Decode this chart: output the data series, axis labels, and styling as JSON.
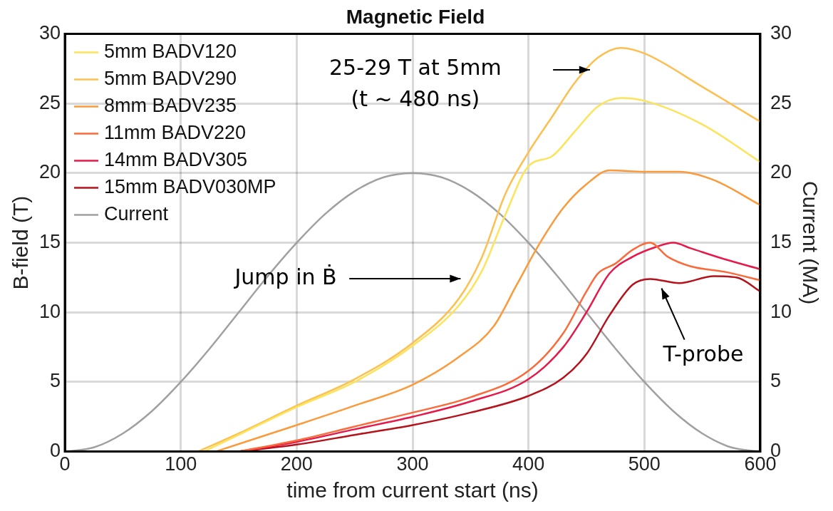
{
  "chart_data": {
    "type": "line",
    "title": "Magnetic Field",
    "xlabel": "time from current start (ns)",
    "ylabel": "B-field (T)",
    "y2label": "Current (MA)",
    "xlim": [
      0,
      600
    ],
    "xticks": [
      0,
      100,
      200,
      300,
      400,
      500,
      600
    ],
    "ylim": [
      0,
      30
    ],
    "yticks": [
      0,
      5,
      10,
      15,
      20,
      25,
      30
    ],
    "y2lim": [
      0,
      30
    ],
    "y2ticks": [
      0,
      5,
      10,
      15,
      20,
      25,
      30
    ],
    "grid": true,
    "legend": "top left",
    "marker": "none",
    "annotations": [
      "25-29 T at 5mm\n(t ~ 480 ns)",
      "Jump in Ḃ",
      "T-probe"
    ],
    "series": [
      {
        "name": "5mm BADV120",
        "color": "#fde35a",
        "x": [
          120,
          150,
          200,
          250,
          300,
          340,
          360,
          380,
          400,
          420,
          440,
          460,
          480,
          500,
          550,
          600
        ],
        "values": [
          0,
          1.2,
          3.2,
          5,
          7.6,
          10.5,
          13,
          17,
          20.5,
          21.2,
          23,
          24.8,
          25.4,
          25.2,
          23.5,
          20.8
        ]
      },
      {
        "name": "5mm BADV290",
        "color": "#fdbf4f",
        "x": [
          115,
          150,
          200,
          250,
          300,
          340,
          360,
          380,
          400,
          420,
          440,
          460,
          480,
          500,
          550,
          600
        ],
        "values": [
          0,
          1.3,
          3.3,
          5.2,
          7.8,
          11,
          14,
          18.5,
          21.5,
          24,
          26.5,
          28.3,
          29,
          28.6,
          26.2,
          23.7
        ]
      },
      {
        "name": "8mm BADV235",
        "color": "#fb9a3a",
        "x": [
          130,
          200,
          250,
          300,
          340,
          370,
          390,
          410,
          430,
          450,
          470,
          500,
          530,
          560,
          600
        ],
        "values": [
          0,
          1.9,
          3.3,
          4.8,
          6.8,
          9,
          12,
          15,
          17.5,
          19.2,
          20.2,
          20.1,
          20.1,
          19.5,
          17.7
        ]
      },
      {
        "name": "11mm BADV220",
        "color": "#fa6a3a",
        "x": [
          150,
          200,
          250,
          300,
          350,
          400,
          430,
          450,
          460,
          475,
          490,
          505,
          520,
          540,
          570,
          600
        ],
        "values": [
          0,
          0.8,
          1.8,
          2.8,
          3.9,
          5.8,
          8.5,
          11.5,
          12.8,
          13.5,
          14.5,
          15,
          14,
          13.3,
          12.9,
          12.3
        ]
      },
      {
        "name": "14mm BADV305",
        "color": "#e5194a",
        "x": [
          150,
          200,
          250,
          300,
          350,
          400,
          430,
          450,
          470,
          490,
          510,
          525,
          540,
          570,
          600
        ],
        "values": [
          0,
          0.7,
          1.6,
          2.5,
          3.6,
          5.2,
          7.5,
          10,
          12.8,
          14,
          14.7,
          15,
          14.6,
          13.8,
          13.1
        ]
      },
      {
        "name": "15mm BADV030MP",
        "color": "#b5121b",
        "x": [
          150,
          200,
          250,
          300,
          350,
          400,
          430,
          450,
          470,
          490,
          505,
          530,
          560,
          580,
          600
        ],
        "values": [
          0,
          0.5,
          1.2,
          1.9,
          2.8,
          4,
          5.3,
          7,
          9.8,
          12,
          12.4,
          12.1,
          12.6,
          12.5,
          11.5
        ]
      },
      {
        "name": "Current",
        "color": "#a0a0a0",
        "x": [
          0,
          25,
          50,
          75,
          100,
          125,
          150,
          175,
          200,
          225,
          250,
          275,
          300,
          325,
          350,
          375,
          400,
          425,
          450,
          475,
          500,
          525,
          550,
          575,
          600
        ],
        "values": [
          0,
          0.3,
          1.3,
          2.9,
          5,
          7.4,
          10,
          12.6,
          15,
          17.1,
          18.7,
          19.7,
          20,
          19.7,
          18.7,
          17.1,
          15,
          12.6,
          10,
          7.4,
          5,
          2.9,
          1.3,
          0.3,
          0
        ]
      }
    ]
  }
}
